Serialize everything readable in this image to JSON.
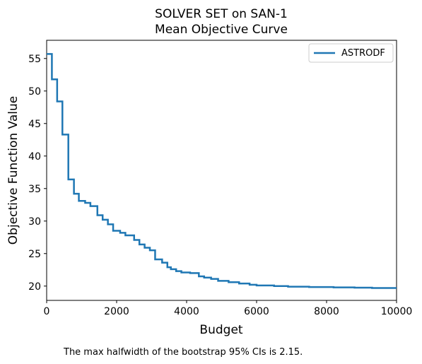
{
  "chart_data": {
    "type": "line",
    "title": [
      "SOLVER SET on SAN-1",
      "Mean Objective Curve"
    ],
    "xlabel": "Budget",
    "ylabel": "Objective Function Value",
    "xlim": [
      0,
      10000
    ],
    "ylim": [
      17.8,
      57.8
    ],
    "xticks": [
      0,
      2000,
      4000,
      6000,
      8000,
      10000
    ],
    "yticks": [
      20,
      25,
      30,
      35,
      40,
      45,
      50,
      55
    ],
    "grid": false,
    "legend_position": "top-right",
    "line_style": "step",
    "series": [
      {
        "name": "ASTRODF",
        "color": "#1f77b4",
        "x": [
          0,
          150,
          300,
          450,
          620,
          780,
          920,
          1100,
          1250,
          1450,
          1600,
          1750,
          1900,
          2100,
          2250,
          2500,
          2650,
          2800,
          2950,
          3100,
          3300,
          3450,
          3550,
          3700,
          3850,
          4100,
          4350,
          4500,
          4700,
          4900,
          5200,
          5500,
          5800,
          6000,
          6500,
          6900,
          7500,
          8200,
          8800,
          9300,
          10000
        ],
        "y": [
          55.7,
          51.8,
          48.4,
          43.3,
          36.4,
          34.2,
          33.1,
          32.8,
          32.3,
          30.9,
          30.2,
          29.5,
          28.5,
          28.2,
          27.8,
          27.1,
          26.4,
          25.9,
          25.5,
          24.1,
          23.6,
          22.9,
          22.6,
          22.3,
          22.1,
          22.0,
          21.5,
          21.3,
          21.1,
          20.8,
          20.6,
          20.4,
          20.2,
          20.1,
          20.0,
          19.9,
          19.85,
          19.8,
          19.75,
          19.7,
          19.7
        ]
      }
    ]
  },
  "footnote": "The max halfwidth of the bootstrap 95% CIs is 2.15."
}
